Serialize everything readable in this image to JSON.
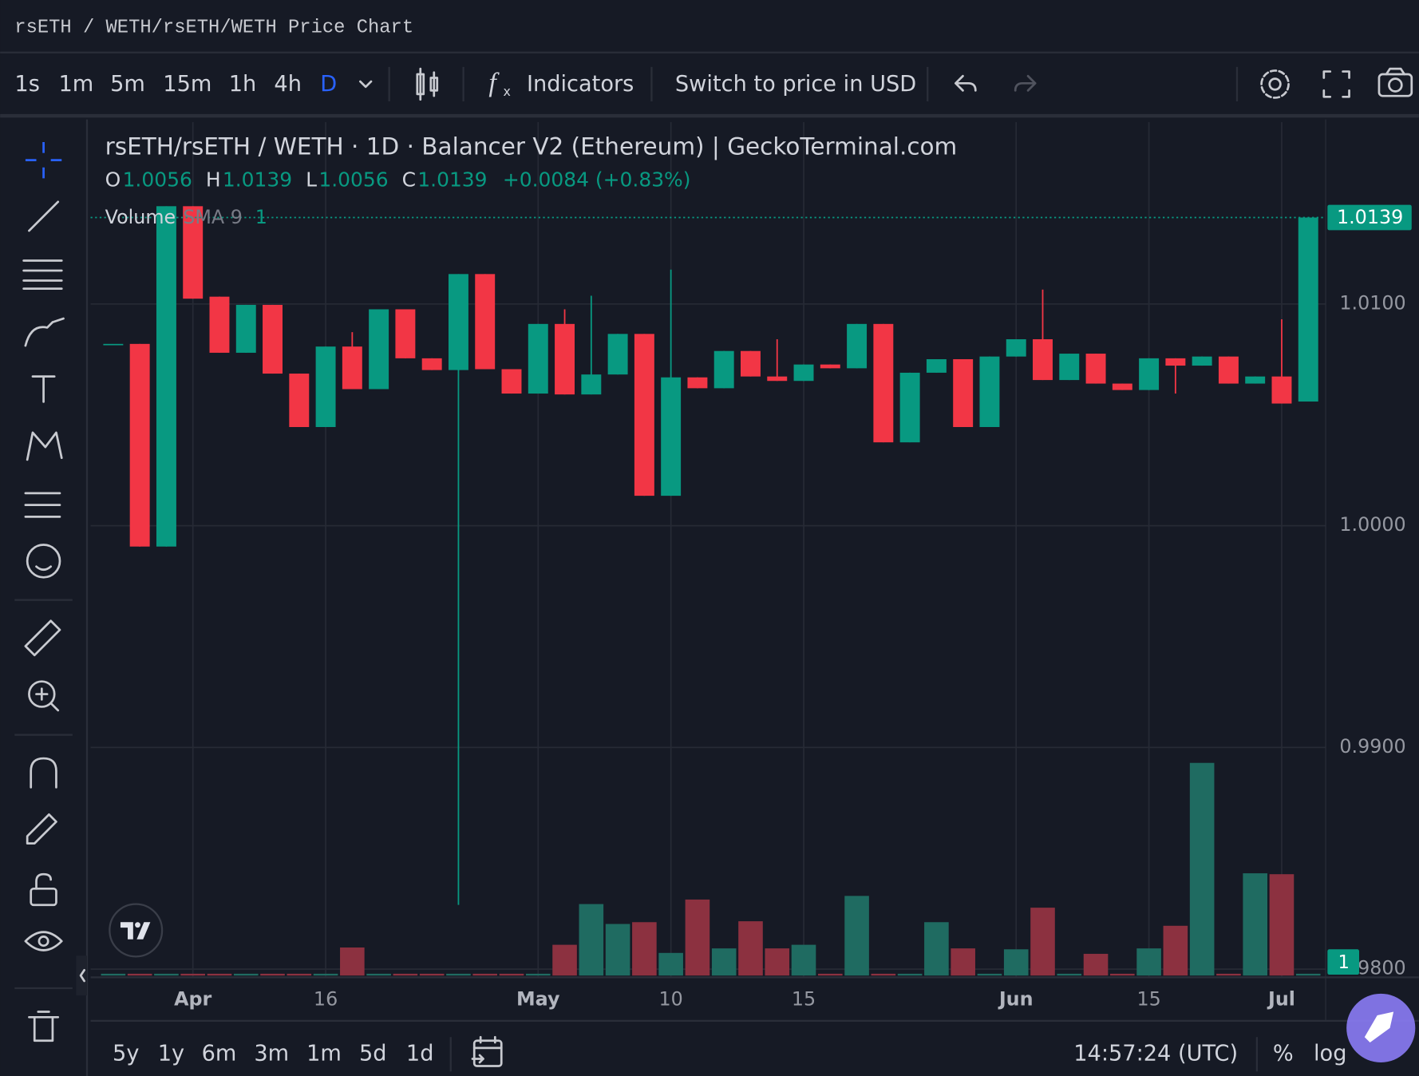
{
  "header": {
    "title": "rsETH / WETH/rsETH/WETH Price Chart"
  },
  "toolbar": {
    "intervals": [
      "1s",
      "1m",
      "5m",
      "15m",
      "1h",
      "4h",
      "D"
    ],
    "indicators": "Indicators",
    "price_switch": "Switch to price in USD"
  },
  "chart_data": {
    "type": "candlestick",
    "title": "rsETH/rsETH / WETH · 1D · Balancer V2 (Ethereum) | GeckoTerminal.com",
    "ohlc_legend": {
      "labels": [
        "O",
        "H",
        "L",
        "C"
      ],
      "values": [
        "1.0056",
        "1.0139",
        "1.0056",
        "1.0139"
      ],
      "change": "+0.0084 (+0.83%)"
    },
    "volume_legend": {
      "name": "Volume",
      "sma": "SMA 9",
      "value": "1"
    },
    "categories": [
      null,
      null,
      null,
      "Apr",
      null,
      null,
      null,
      null,
      "16",
      null,
      null,
      null,
      null,
      null,
      null,
      null,
      "May",
      null,
      null,
      null,
      null,
      "10",
      null,
      null,
      null,
      null,
      "15",
      null,
      null,
      null,
      null,
      null,
      null,
      null,
      "Jun",
      null,
      null,
      null,
      null,
      "15",
      null,
      null,
      null,
      null,
      "Jul",
      null
    ],
    "open": [
      1.0082,
      1.0082,
      0.99906,
      1.01441,
      1.01033,
      1.0078,
      1.00996,
      1.00686,
      1.00445,
      1.00808,
      1.00616,
      1.00976,
      1.00755,
      1.00702,
      1.01135,
      1.00706,
      1.00596,
      1.0091,
      1.00592,
      1.00682,
      1.00865,
      1.00135,
      1.00669,
      1.0062,
      1.00788,
      1.00673,
      1.00653,
      1.00727,
      1.0071,
      1.0091,
      1.00376,
      1.0069,
      1.00751,
      1.00445,
      1.00763,
      1.00841,
      1.00657,
      1.00776,
      1.00641,
      1.00612,
      1.00755,
      1.00722,
      1.00763,
      1.00641,
      1.00673,
      1.0056
    ],
    "high": [
      1.0082,
      1.0082,
      1.01441,
      1.01441,
      1.01033,
      1.00996,
      1.00996,
      1.00686,
      1.00808,
      1.00873,
      1.00976,
      1.00976,
      1.00755,
      1.01135,
      1.01135,
      1.00706,
      1.0091,
      1.00976,
      1.01037,
      1.00865,
      1.00865,
      1.01155,
      1.00669,
      1.00788,
      1.00788,
      1.00841,
      1.00727,
      1.00727,
      1.0091,
      1.0091,
      1.0069,
      1.00751,
      1.00751,
      1.00763,
      1.00841,
      1.01065,
      1.00776,
      1.00776,
      1.00641,
      1.00755,
      1.00755,
      1.00763,
      1.00763,
      1.00673,
      1.00931,
      1.0139
    ],
    "low": [
      1.0082,
      0.99906,
      0.99906,
      1.01024,
      1.0078,
      1.0078,
      1.00686,
      1.00445,
      1.00445,
      1.00616,
      1.00616,
      1.00755,
      1.00702,
      0.9829,
      1.00706,
      1.00596,
      1.00596,
      1.00592,
      1.00592,
      1.00682,
      1.00135,
      1.00135,
      1.0062,
      1.0062,
      1.00673,
      1.00653,
      1.00653,
      1.0071,
      1.0071,
      1.00376,
      1.00376,
      1.0069,
      1.00445,
      1.00445,
      1.00763,
      1.00657,
      1.00657,
      1.00641,
      1.00612,
      1.00612,
      1.00596,
      1.00722,
      1.00641,
      1.00641,
      1.00551,
      1.0056
    ],
    "close": [
      1.0082,
      0.99906,
      1.01441,
      1.01024,
      1.0078,
      1.00996,
      1.00686,
      1.00445,
      1.00808,
      1.00616,
      1.00976,
      1.00755,
      1.00702,
      1.01135,
      1.00706,
      1.00596,
      1.0091,
      1.00592,
      1.00682,
      1.00865,
      1.00135,
      1.00669,
      1.0062,
      1.00788,
      1.00673,
      1.00653,
      1.00727,
      1.0071,
      1.0091,
      1.00376,
      1.0069,
      1.00751,
      1.00445,
      1.00763,
      1.00841,
      1.00657,
      1.00776,
      1.00641,
      1.00612,
      1.00755,
      1.00722,
      1.00763,
      1.00641,
      1.00673,
      1.00551,
      1.0139
    ],
    "volume": [
      1,
      1,
      1,
      1,
      1,
      1,
      1,
      1,
      1,
      15.5,
      1,
      1,
      1,
      1,
      1,
      1,
      1,
      17,
      39.5,
      28.5,
      29.5,
      12.5,
      42,
      15,
      30,
      15,
      17,
      1,
      44,
      1,
      1,
      29.5,
      15,
      1,
      14.5,
      37.5,
      1,
      12,
      1,
      15,
      27.5,
      117.5,
      1,
      56.5,
      56,
      1
    ],
    "up_color": "#089981",
    "down_color": "#f23645",
    "volume_up_color": "#1f6b61",
    "volume_down_color": "#8c3140",
    "ylim": [
      0.97963,
      1.0182
    ],
    "yticks": [
      {
        "value": 0.98,
        "label": "0.9800"
      },
      {
        "value": 0.99,
        "label": "0.9900"
      },
      {
        "value": 1.0,
        "label": "1.0000"
      },
      {
        "value": 1.01,
        "label": "1.0100"
      }
    ],
    "volume_ylim": [
      0,
      150
    ],
    "last_price": {
      "value": 1.0139,
      "label": "1.0139"
    },
    "grid": true
  },
  "footer": {
    "ranges": [
      "5y",
      "1y",
      "6m",
      "3m",
      "1m",
      "5d",
      "1d"
    ],
    "clock": "14:57:24 (UTC)",
    "percent": "%",
    "log": "log"
  }
}
